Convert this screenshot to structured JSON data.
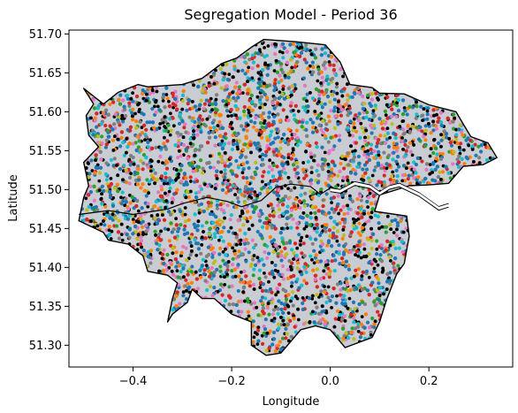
{
  "chart_data": {
    "type": "scatter",
    "title": "Segregation Model - Period 36",
    "xlabel": "Longitude",
    "ylabel": "Latitude",
    "xlim": [
      -0.53,
      0.37
    ],
    "ylim": [
      51.272,
      51.705
    ],
    "xticks": [
      -0.4,
      -0.2,
      0.0,
      0.2
    ],
    "xtick_labels": [
      "−0.4",
      "−0.2",
      "0.0",
      "0.2"
    ],
    "yticks": [
      51.3,
      51.35,
      51.4,
      51.45,
      51.5,
      51.55,
      51.6,
      51.65,
      51.7
    ],
    "ytick_labels": [
      "51.30",
      "51.35",
      "51.40",
      "51.45",
      "51.50",
      "51.55",
      "51.60",
      "51.65",
      "51.70"
    ],
    "grid": false,
    "legend": "none",
    "boundary_lonlat": [
      [
        -0.135,
        51.693
      ],
      [
        -0.07,
        51.69
      ],
      [
        -0.01,
        51.686
      ],
      [
        0.02,
        51.664
      ],
      [
        0.04,
        51.635
      ],
      [
        0.085,
        51.631
      ],
      [
        0.1,
        51.624
      ],
      [
        0.15,
        51.623
      ],
      [
        0.2,
        51.609
      ],
      [
        0.255,
        51.6
      ],
      [
        0.27,
        51.584
      ],
      [
        0.285,
        51.568
      ],
      [
        0.32,
        51.56
      ],
      [
        0.338,
        51.541
      ],
      [
        0.31,
        51.532
      ],
      [
        0.27,
        51.53
      ],
      [
        0.24,
        51.508
      ],
      [
        0.2,
        51.506
      ],
      [
        0.16,
        51.505
      ],
      [
        0.1,
        51.493
      ],
      [
        0.09,
        51.472
      ],
      [
        0.155,
        51.466
      ],
      [
        0.16,
        51.44
      ],
      [
        0.15,
        51.405
      ],
      [
        0.135,
        51.392
      ],
      [
        0.115,
        51.36
      ],
      [
        0.1,
        51.33
      ],
      [
        0.085,
        51.31
      ],
      [
        0.03,
        51.297
      ],
      [
        0.0,
        51.32
      ],
      [
        -0.03,
        51.325
      ],
      [
        -0.06,
        51.32
      ],
      [
        -0.1,
        51.29
      ],
      [
        -0.13,
        51.287
      ],
      [
        -0.16,
        51.3
      ],
      [
        -0.16,
        51.33
      ],
      [
        -0.2,
        51.34
      ],
      [
        -0.235,
        51.36
      ],
      [
        -0.26,
        51.36
      ],
      [
        -0.28,
        51.372
      ],
      [
        -0.29,
        51.355
      ],
      [
        -0.32,
        51.34
      ],
      [
        -0.33,
        51.33
      ],
      [
        -0.32,
        51.36
      ],
      [
        -0.31,
        51.38
      ],
      [
        -0.33,
        51.39
      ],
      [
        -0.37,
        51.395
      ],
      [
        -0.38,
        51.415
      ],
      [
        -0.41,
        51.43
      ],
      [
        -0.45,
        51.435
      ],
      [
        -0.46,
        51.445
      ],
      [
        -0.51,
        51.46
      ],
      [
        -0.5,
        51.49
      ],
      [
        -0.49,
        51.505
      ],
      [
        -0.5,
        51.535
      ],
      [
        -0.47,
        51.555
      ],
      [
        -0.49,
        51.57
      ],
      [
        -0.495,
        51.595
      ],
      [
        -0.48,
        51.61
      ],
      [
        -0.5,
        51.63
      ],
      [
        -0.46,
        51.61
      ],
      [
        -0.43,
        51.625
      ],
      [
        -0.39,
        51.635
      ],
      [
        -0.37,
        51.632
      ],
      [
        -0.3,
        51.635
      ],
      [
        -0.26,
        51.643
      ],
      [
        -0.22,
        51.662
      ],
      [
        -0.19,
        51.669
      ],
      [
        -0.16,
        51.683
      ]
    ],
    "river_lonlat": [
      [
        -0.51,
        51.468
      ],
      [
        -0.45,
        51.473
      ],
      [
        -0.4,
        51.468
      ],
      [
        -0.33,
        51.475
      ],
      [
        -0.3,
        51.482
      ],
      [
        -0.25,
        51.49
      ],
      [
        -0.21,
        51.485
      ],
      [
        -0.18,
        51.478
      ],
      [
        -0.14,
        51.486
      ],
      [
        -0.11,
        51.503
      ],
      [
        -0.08,
        51.507
      ],
      [
        -0.04,
        51.504
      ],
      [
        -0.02,
        51.494
      ],
      [
        0.0,
        51.502
      ],
      [
        0.02,
        51.5
      ],
      [
        0.05,
        51.51
      ],
      [
        0.08,
        51.506
      ],
      [
        0.1,
        51.497
      ],
      [
        0.12,
        51.505
      ],
      [
        0.14,
        51.508
      ],
      [
        0.18,
        51.496
      ],
      [
        0.22,
        51.478
      ],
      [
        0.24,
        51.482
      ]
    ],
    "series": [
      {
        "color": "#1f77b4",
        "share": 0.2
      },
      {
        "color": "#000000",
        "share": 0.21
      },
      {
        "color": "#ff7f0e",
        "share": 0.09
      },
      {
        "color": "#d62728",
        "share": 0.1
      },
      {
        "color": "#e377c2",
        "share": 0.1
      },
      {
        "color": "#7f7f7f",
        "share": 0.1
      },
      {
        "color": "#bcbd22",
        "share": 0.06
      },
      {
        "color": "#17becf",
        "share": 0.08
      },
      {
        "color": "#2ca02c",
        "share": 0.06
      }
    ],
    "marker_colors_note": "multicolored agents scattered across the boundary; black agents prominent"
  }
}
